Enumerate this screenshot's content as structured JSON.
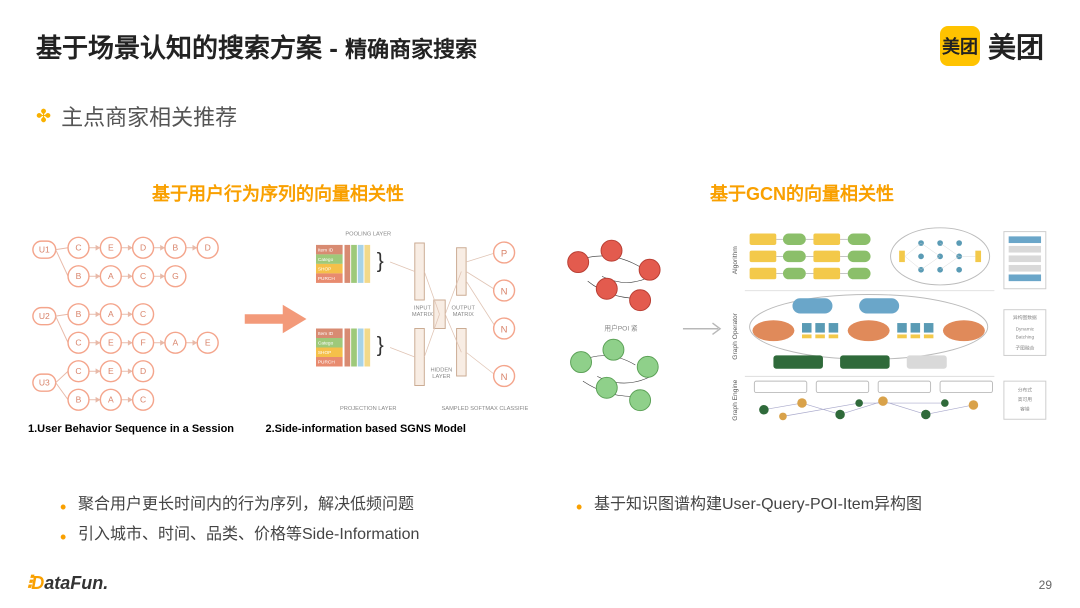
{
  "header": {
    "title_main": "基于场景认知的搜索方案",
    "title_sep": " - ",
    "title_sub": "精确商家搜索",
    "logo_badge": "美团",
    "logo_text": "美团"
  },
  "section_subtitle": "主点商家相关推荐",
  "left": {
    "title": "基于用户行为序列的向量相关性",
    "caption1": "1.User Behavior Sequence in a Session",
    "caption2": "2.Side-information based SGNS Model",
    "bullets": [
      "聚合用户更长时间内的行为序列，解决低频问题",
      "引入城市、时间、品类、价格等Side-Information"
    ],
    "diagram": {
      "type": "flowchart",
      "node_stroke": "#f4a58c",
      "node_fill": "#ffffff",
      "node_text": "#d8836a",
      "arrow": "#f39a7a",
      "user_nodes": [
        "U1",
        "U2",
        "U3"
      ],
      "rows": [
        [
          "C",
          "E",
          "D",
          "B",
          "D"
        ],
        [
          "B",
          "A",
          "C",
          "G"
        ],
        [
          "B",
          "A",
          "C"
        ],
        [
          "C",
          "E",
          "F",
          "A",
          "E"
        ],
        [
          "C",
          "E",
          "D"
        ],
        [
          "B",
          "A",
          "C"
        ]
      ],
      "sgns": {
        "side_info_colors": [
          "#9ec97a",
          "#f5c04a",
          "#e88b6f",
          "#f3d98a"
        ],
        "side_labels": [
          "Item ID",
          "Catego",
          "SHOP",
          "PURCH"
        ],
        "layer_labels": [
          "POOLING LAYER",
          "INPUT MATRIX",
          "HIDDEN LAYER",
          "OUTPUT MATRIX",
          "PROJECTION LAYER",
          "SAMPLED SOFTMAX CLASSIFIER"
        ],
        "output_nodes": [
          "P",
          "N",
          "N",
          "N"
        ],
        "block_colors": [
          "#d88b72",
          "#9ec97a",
          "#a7d3e8",
          "#f3d98a"
        ]
      }
    }
  },
  "right": {
    "title": "基于GCN的向量相关性",
    "bullets": [
      "基于知识图谱构建User-Query-POI-Item异构图"
    ],
    "diagram": {
      "type": "network+flowchart",
      "graph1_nodes": 5,
      "graph1_color": "#e35b4e",
      "graph2_nodes": 5,
      "graph2_color": "#8fd08a",
      "caption_small": "用户POI 紧",
      "arrow_color": "#b8b8b8",
      "pipeline": {
        "row_labels": [
          "Algorithm",
          "Graph Operator",
          "Graph Engine"
        ],
        "block_colors": [
          "#f3c94a",
          "#8bbf6a",
          "#6aa6c9",
          "#e08a5a",
          "#5a9bb5",
          "#d9a24a"
        ],
        "side_legend_color": "#d9d9d9",
        "side_legend_items": 6,
        "engine_node_colors": [
          "#2f6a3a",
          "#d9a24a",
          "#2f6a3a",
          "#d9a24a",
          "#2f6a3a"
        ]
      }
    }
  },
  "footer": {
    "brand_d": "D",
    "brand_rest": "ataFun.",
    "page": "29"
  },
  "colors": {
    "accent": "#f9a000",
    "badge": "#ffc300",
    "text": "#222222",
    "muted": "#555555"
  }
}
